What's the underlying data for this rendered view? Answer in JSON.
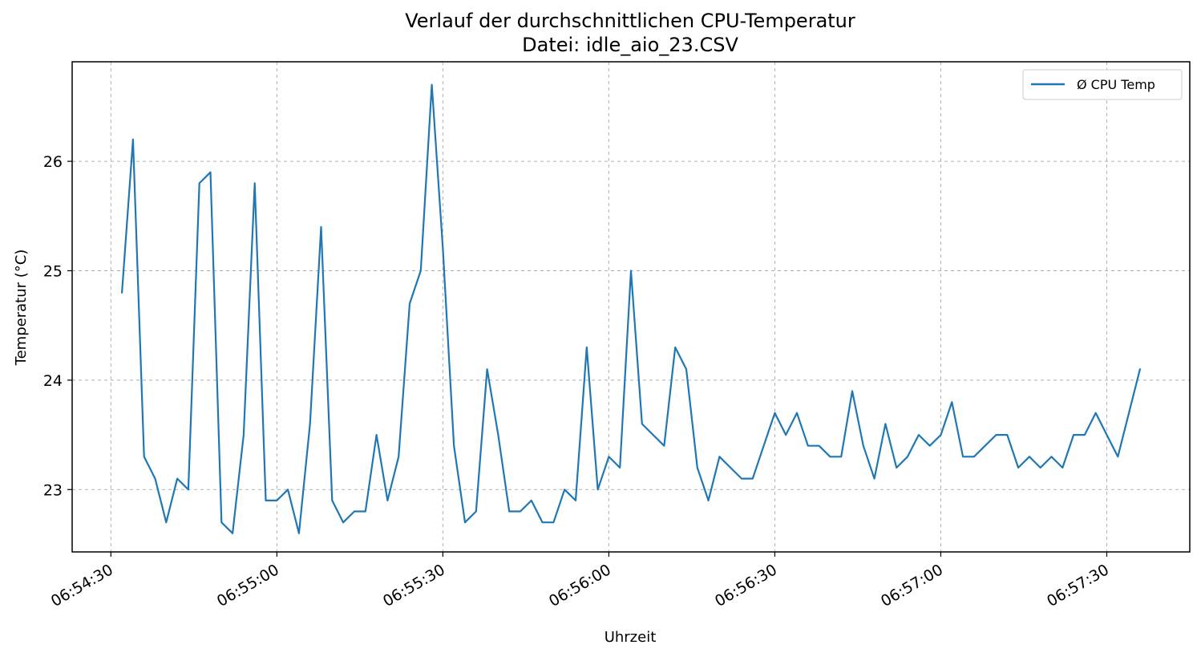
{
  "chart_data": {
    "type": "line",
    "title": "Verlauf der durchschnittlichen CPU-Temperatur",
    "subtitle": "Datei: idle_aio_23.CSV",
    "xlabel": "Uhrzeit",
    "ylabel": "Temperatur (°C)",
    "x_ticks": [
      "06:54:30",
      "06:55:00",
      "06:55:30",
      "06:56:00",
      "06:56:30",
      "06:57:00",
      "06:57:30"
    ],
    "y_ticks": [
      "23",
      "24",
      "25",
      "26"
    ],
    "x_range": [
      "06:54:23",
      "06:57:45"
    ],
    "ylim": [
      22.43,
      26.91
    ],
    "grid": true,
    "legend_position": "top-right",
    "series": [
      {
        "name": "Ø CPU Temp",
        "color": "#1f77b4",
        "x": [
          "06:54:32",
          "06:54:34",
          "06:54:36",
          "06:54:38",
          "06:54:40",
          "06:54:42",
          "06:54:44",
          "06:54:46",
          "06:54:48",
          "06:54:50",
          "06:54:52",
          "06:54:54",
          "06:54:56",
          "06:54:58",
          "06:55:00",
          "06:55:02",
          "06:55:04",
          "06:55:06",
          "06:55:08",
          "06:55:10",
          "06:55:12",
          "06:55:14",
          "06:55:16",
          "06:55:18",
          "06:55:20",
          "06:55:22",
          "06:55:24",
          "06:55:26",
          "06:55:28",
          "06:55:30",
          "06:55:32",
          "06:55:34",
          "06:55:36",
          "06:55:38",
          "06:55:40",
          "06:55:42",
          "06:55:44",
          "06:55:46",
          "06:55:48",
          "06:55:50",
          "06:55:52",
          "06:55:54",
          "06:55:56",
          "06:55:58",
          "06:56:00",
          "06:56:02",
          "06:56:04",
          "06:56:06",
          "06:56:08",
          "06:56:10",
          "06:56:12",
          "06:56:14",
          "06:56:16",
          "06:56:18",
          "06:56:20",
          "06:56:22",
          "06:56:24",
          "06:56:26",
          "06:56:28",
          "06:56:30",
          "06:56:32",
          "06:56:34",
          "06:56:36",
          "06:56:38",
          "06:56:40",
          "06:56:42",
          "06:56:44",
          "06:56:46",
          "06:56:48",
          "06:56:50",
          "06:56:52",
          "06:56:54",
          "06:56:56",
          "06:56:58",
          "06:57:00",
          "06:57:02",
          "06:57:04",
          "06:57:06",
          "06:57:08",
          "06:57:10",
          "06:57:12",
          "06:57:14",
          "06:57:16",
          "06:57:18",
          "06:57:20",
          "06:57:22",
          "06:57:24",
          "06:57:26",
          "06:57:28",
          "06:57:30",
          "06:57:32",
          "06:57:34",
          "06:57:36"
        ],
        "values": [
          24.8,
          26.2,
          23.3,
          23.1,
          22.7,
          23.1,
          23.0,
          25.8,
          25.9,
          22.7,
          22.6,
          23.5,
          25.8,
          22.9,
          22.9,
          23.0,
          22.6,
          23.6,
          25.4,
          22.9,
          22.7,
          22.8,
          22.8,
          23.5,
          22.9,
          23.3,
          24.7,
          25.0,
          26.7,
          25.2,
          23.4,
          22.7,
          22.8,
          24.1,
          23.5,
          22.8,
          22.8,
          22.9,
          22.7,
          22.7,
          23.0,
          22.9,
          24.3,
          23.0,
          23.3,
          23.2,
          25.0,
          23.6,
          23.5,
          23.4,
          24.3,
          24.1,
          23.2,
          22.9,
          23.3,
          23.2,
          23.1,
          23.1,
          23.4,
          23.7,
          23.5,
          23.7,
          23.4,
          23.4,
          23.3,
          23.3,
          23.9,
          23.4,
          23.1,
          23.6,
          23.2,
          23.3,
          23.5,
          23.4,
          23.5,
          23.8,
          23.3,
          23.3,
          23.4,
          23.5,
          23.5,
          23.2,
          23.3,
          23.2,
          23.3,
          23.2,
          23.5,
          23.5,
          23.7,
          23.5,
          23.3,
          23.7,
          24.1
        ]
      }
    ]
  }
}
